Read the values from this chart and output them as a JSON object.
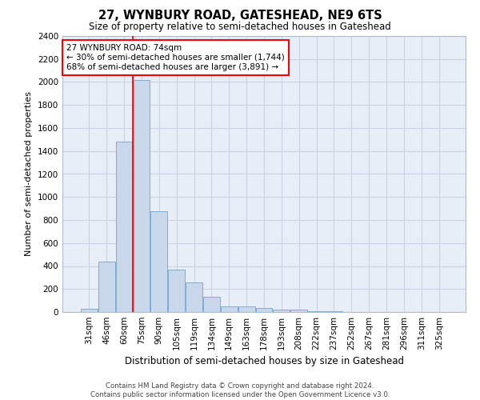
{
  "title": "27, WYNBURY ROAD, GATESHEAD, NE9 6TS",
  "subtitle": "Size of property relative to semi-detached houses in Gateshead",
  "xlabel": "Distribution of semi-detached houses by size in Gateshead",
  "ylabel": "Number of semi-detached properties",
  "categories": [
    "31sqm",
    "46sqm",
    "60sqm",
    "75sqm",
    "90sqm",
    "105sqm",
    "119sqm",
    "134sqm",
    "149sqm",
    "163sqm",
    "178sqm",
    "193sqm",
    "208sqm",
    "222sqm",
    "237sqm",
    "252sqm",
    "267sqm",
    "281sqm",
    "296sqm",
    "311sqm",
    "325sqm"
  ],
  "values": [
    30,
    440,
    1480,
    2020,
    875,
    370,
    255,
    130,
    50,
    50,
    35,
    20,
    20,
    8,
    5,
    3,
    3,
    2,
    2,
    2,
    2
  ],
  "bar_color": "#c8d8ea",
  "bar_edge_color": "#7aafd4",
  "vline_index": 3,
  "annotation_line1": "27 WYNBURY ROAD: 74sqm",
  "annotation_line2": "← 30% of semi-detached houses are smaller (1,744)",
  "annotation_line3": "68% of semi-detached houses are larger (3,891) →",
  "annotation_box_color": "white",
  "annotation_box_edge_color": "red",
  "vline_color": "red",
  "ylim": [
    0,
    2400
  ],
  "yticks": [
    0,
    200,
    400,
    600,
    800,
    1000,
    1200,
    1400,
    1600,
    1800,
    2000,
    2200,
    2400
  ],
  "grid_color": "#c8d4e4",
  "background_color": "#e8eef8",
  "footer_line1": "Contains HM Land Registry data © Crown copyright and database right 2024.",
  "footer_line2": "Contains public sector information licensed under the Open Government Licence v3.0."
}
